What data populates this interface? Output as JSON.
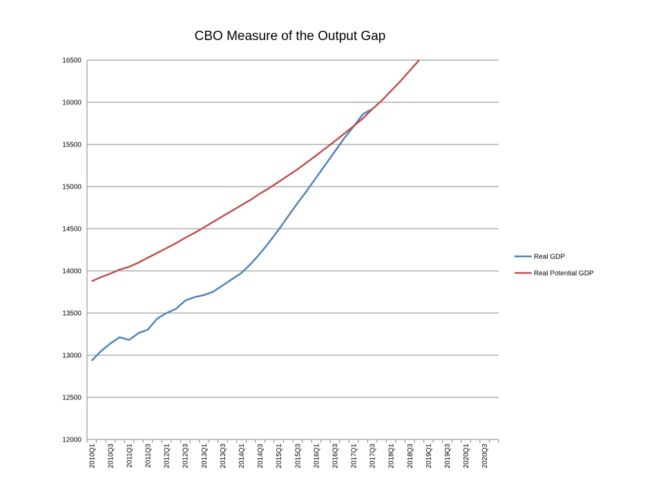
{
  "chart_data": {
    "type": "line",
    "title": "CBO Measure of the Output Gap",
    "categories": [
      "2010Q1",
      null,
      "2010Q3",
      null,
      "2011Q1",
      null,
      "2011Q3",
      null,
      "2012Q1",
      null,
      "2012Q3",
      null,
      "2013Q1",
      null,
      "2013Q3",
      null,
      "2014Q1",
      null,
      "2014Q3",
      null,
      "2015Q1",
      null,
      "2015Q3",
      null,
      "2016Q1",
      null,
      "2016Q3",
      null,
      "2017Q1",
      null,
      "2017Q3",
      null,
      "2018Q1",
      null,
      "2018Q3",
      null,
      "2019Q1",
      null,
      "2019Q3",
      null,
      "2020Q1",
      null,
      "2020Q3",
      null
    ],
    "series": [
      {
        "name": "Real GDP",
        "color": "#4f81bd",
        "values": [
          12934,
          13049,
          13139,
          13213,
          13180,
          13262,
          13303,
          13434,
          13500,
          13549,
          13648,
          13689,
          13713,
          13754,
          13828,
          13902,
          13975,
          14082,
          14205,
          14344,
          14492,
          14648,
          14803,
          14951,
          15107,
          15262,
          15418,
          15574,
          15713,
          15861,
          15920,
          null,
          null,
          null,
          null,
          null,
          null,
          null,
          null,
          null,
          null,
          null,
          null,
          null
        ]
      },
      {
        "name": "Real Potential GDP",
        "color": "#c0504d",
        "values": [
          13877,
          13926,
          13967,
          14016,
          14049,
          14098,
          14156,
          14213,
          14270,
          14328,
          14393,
          14451,
          14516,
          14582,
          14648,
          14713,
          14779,
          14844,
          14918,
          14984,
          15057,
          15131,
          15205,
          15287,
          15370,
          15455,
          15540,
          15628,
          15718,
          15810,
          15920,
          16020,
          16135,
          16250,
          16375,
          16500,
          null,
          null,
          null,
          null,
          null,
          null,
          null,
          null
        ]
      }
    ],
    "ylim": [
      12000,
      16500
    ],
    "yticks": [
      12000,
      12500,
      13000,
      13500,
      14000,
      14500,
      15000,
      15500,
      16000,
      16500
    ],
    "grid": true,
    "legend": "right"
  }
}
